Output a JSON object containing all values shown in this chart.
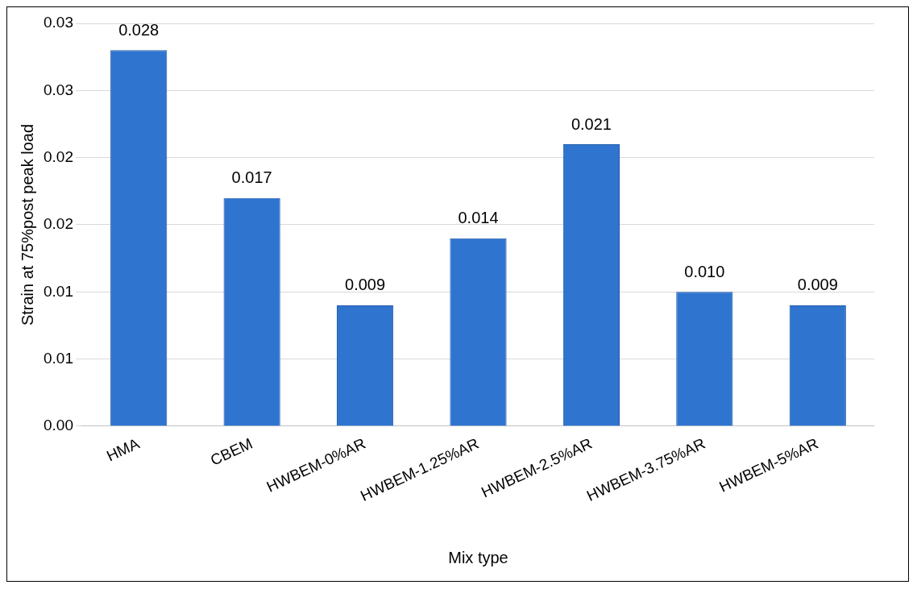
{
  "chart_data": {
    "type": "bar",
    "xlabel": "Mix type",
    "ylabel": "Strain at 75%post peak load",
    "categories": [
      "HMA",
      "CBEM",
      "HWBEM-0%AR",
      "HWBEM-1.25%AR",
      "HWBEM-2.5%AR",
      "HWBEM-3.75%AR",
      "HWBEM-5%AR"
    ],
    "values": [
      0.028,
      0.017,
      0.009,
      0.014,
      0.021,
      0.01,
      0.009
    ],
    "color": "#2f74cf",
    "ylim": [
      0,
      0.03
    ],
    "yticks": [
      {
        "value": 0,
        "label": "0.00"
      },
      {
        "value": 0.005,
        "label": "0.01"
      },
      {
        "value": 0.01,
        "label": "0.01"
      },
      {
        "value": 0.015,
        "label": "0.02"
      },
      {
        "value": 0.02,
        "label": "0.02"
      },
      {
        "value": 0.025,
        "label": "0.03"
      },
      {
        "value": 0.03,
        "label": "0.03"
      }
    ],
    "value_labels": [
      "0.028",
      "0.017",
      "0.009",
      "0.014",
      "0.021",
      "0.010",
      "0.009"
    ],
    "grid": "y",
    "legend": false
  }
}
